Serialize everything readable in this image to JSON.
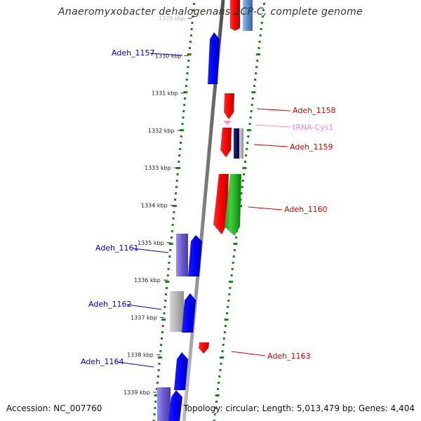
{
  "title": "Anaeromyxobacter dehalogenans 2CP-C, complete genome",
  "accession": "Accession: NC_007760",
  "summary": "Topology: circular; Length: 5,013,479 bp; Genes: 4,404",
  "scale_ticks": [
    "1329 kbp",
    "1330 kbp",
    "1331 kbp",
    "1332 kbp",
    "1333 kbp",
    "1334 kbp",
    "1335 kbp",
    "1336 kbp",
    "1337 kbp",
    "1338 kbp",
    "1339 kbp"
  ],
  "features": [
    {
      "label": "Adeh_1157",
      "strand": "-",
      "color": "#0000cc"
    },
    {
      "label": "Adeh_1158",
      "strand": "+",
      "color": "#d40000"
    },
    {
      "label": "tRNA-Cys1",
      "strand": "+",
      "color": "#f08cc8"
    },
    {
      "label": "Adeh_1159",
      "strand": "+",
      "color": "#d40000"
    },
    {
      "label": "Adeh_1160",
      "strand": "+",
      "color": "#d40000"
    },
    {
      "label": "Adeh_1161",
      "strand": "-",
      "color": "#0000cc"
    },
    {
      "label": "Adeh_1162",
      "strand": "-",
      "color": "#0000cc"
    },
    {
      "label": "Adeh_1163",
      "strand": "+",
      "color": "#d40000"
    },
    {
      "label": "Adeh_1164",
      "strand": "-",
      "color": "#0000cc"
    }
  ],
  "colors": {
    "forward_cds": "#ff0000",
    "reverse_cds": "#0000ff",
    "trna": "#ff99cc",
    "backbone": "#808080",
    "gc_dots": "#138a13",
    "steelblue_track": "#5a8cc8",
    "green_track": "#22aa22",
    "purple_track": "#6a5acd",
    "gray_track": "#b4b4b4",
    "navy_track": "#101060"
  }
}
